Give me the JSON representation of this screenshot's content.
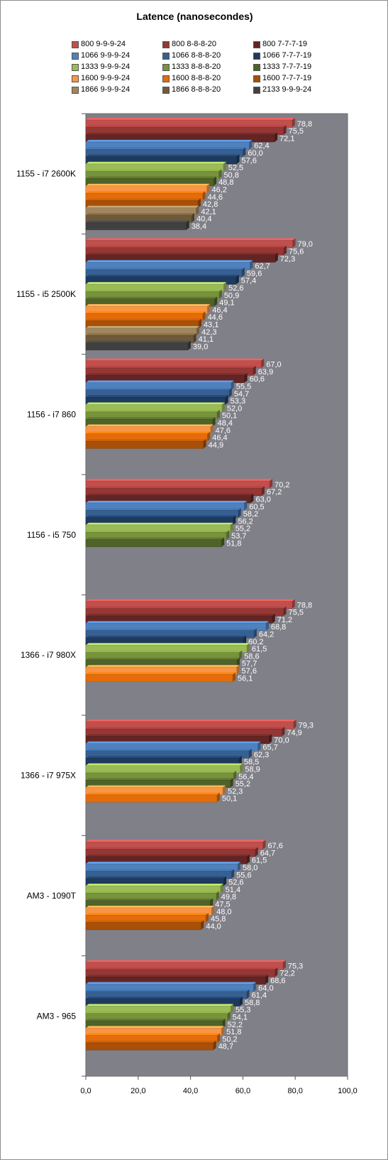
{
  "chart_data": {
    "type": "bar",
    "orientation": "horizontal",
    "title": "Latence (nanosecondes)",
    "xlim": [
      0,
      100
    ],
    "x_ticks": [
      "0,0",
      "20,0",
      "40,0",
      "60,0",
      "80,0",
      "100,0"
    ],
    "grid": false,
    "plot_background": "#808088",
    "legend_position": "top",
    "legend": [
      {
        "name": "800 9-9-9-24",
        "color": "#c0504d"
      },
      {
        "name": "800 8-8-8-20",
        "color": "#953735"
      },
      {
        "name": "800 7-7-7-19",
        "color": "#632523"
      },
      {
        "name": "1066 9-9-9-24",
        "color": "#4f81bd"
      },
      {
        "name": "1066 8-8-8-20",
        "color": "#376092"
      },
      {
        "name": "1066 7-7-7-19",
        "color": "#1f3a5f"
      },
      {
        "name": "1333 9-9-9-24",
        "color": "#9bbb59"
      },
      {
        "name": "1333 8-8-8-20",
        "color": "#77933c"
      },
      {
        "name": "1333 7-7-7-19",
        "color": "#4f6228"
      },
      {
        "name": "1600 9-9-9-24",
        "color": "#f79646"
      },
      {
        "name": "1600 8-8-8-20",
        "color": "#e46c0a"
      },
      {
        "name": "1600 7-7-7-19",
        "color": "#a84f08"
      },
      {
        "name": "1866 9-9-9-24",
        "color": "#a0865e"
      },
      {
        "name": "1866 8-8-8-20",
        "color": "#6e5a3a"
      },
      {
        "name": "2133 9-9-9-24",
        "color": "#404040"
      }
    ],
    "categories": [
      {
        "name": "1155 - i7 2600K",
        "bars": [
          {
            "series": 0,
            "value": 78.8,
            "label": "78,8"
          },
          {
            "series": 1,
            "value": 75.5,
            "label": "75,5"
          },
          {
            "series": 2,
            "value": 72.1,
            "label": "72,1"
          },
          {
            "series": 3,
            "value": 62.4,
            "label": "62,4"
          },
          {
            "series": 4,
            "value": 60.0,
            "label": "60,0"
          },
          {
            "series": 5,
            "value": 57.6,
            "label": "57,6"
          },
          {
            "series": 6,
            "value": 52.5,
            "label": "52,5"
          },
          {
            "series": 7,
            "value": 50.8,
            "label": "50,8"
          },
          {
            "series": 8,
            "value": 48.8,
            "label": "48,8"
          },
          {
            "series": 9,
            "value": 46.2,
            "label": "46,2"
          },
          {
            "series": 10,
            "value": 44.6,
            "label": "44,6"
          },
          {
            "series": 11,
            "value": 42.8,
            "label": "42,8"
          },
          {
            "series": 12,
            "value": 42.1,
            "label": "42,1"
          },
          {
            "series": 13,
            "value": 40.4,
            "label": "40,4"
          },
          {
            "series": 14,
            "value": 38.4,
            "label": "38,4"
          }
        ]
      },
      {
        "name": "1155 - i5 2500K",
        "bars": [
          {
            "series": 0,
            "value": 79.0,
            "label": "79,0"
          },
          {
            "series": 1,
            "value": 75.6,
            "label": "75,6"
          },
          {
            "series": 2,
            "value": 72.3,
            "label": "72,3"
          },
          {
            "series": 3,
            "value": 62.7,
            "label": "62,7"
          },
          {
            "series": 4,
            "value": 59.6,
            "label": "59,6"
          },
          {
            "series": 5,
            "value": 57.4,
            "label": "57,4"
          },
          {
            "series": 6,
            "value": 52.6,
            "label": "52,6"
          },
          {
            "series": 7,
            "value": 50.9,
            "label": "50,9"
          },
          {
            "series": 8,
            "value": 49.1,
            "label": "49,1"
          },
          {
            "series": 9,
            "value": 46.4,
            "label": "46,4"
          },
          {
            "series": 10,
            "value": 44.6,
            "label": "44,6"
          },
          {
            "series": 11,
            "value": 43.1,
            "label": "43,1"
          },
          {
            "series": 12,
            "value": 42.3,
            "label": "42,3"
          },
          {
            "series": 13,
            "value": 41.1,
            "label": "41,1"
          },
          {
            "series": 14,
            "value": 39.0,
            "label": "39,0"
          }
        ]
      },
      {
        "name": "1156 - i7 860",
        "bars": [
          {
            "series": 0,
            "value": 67.0,
            "label": "67,0"
          },
          {
            "series": 1,
            "value": 63.9,
            "label": "63,9"
          },
          {
            "series": 2,
            "value": 60.6,
            "label": "60,6"
          },
          {
            "series": 3,
            "value": 55.5,
            "label": "55,5"
          },
          {
            "series": 4,
            "value": 54.7,
            "label": "54,7"
          },
          {
            "series": 5,
            "value": 53.3,
            "label": "53,3"
          },
          {
            "series": 6,
            "value": 52.0,
            "label": "52,0"
          },
          {
            "series": 7,
            "value": 50.1,
            "label": "50,1"
          },
          {
            "series": 8,
            "value": 48.4,
            "label": "48,4"
          },
          {
            "series": 9,
            "value": 47.6,
            "label": "47,6"
          },
          {
            "series": 10,
            "value": 46.4,
            "label": "46,4"
          },
          {
            "series": 11,
            "value": 44.9,
            "label": "44,9"
          }
        ]
      },
      {
        "name": "1156 - i5 750",
        "bars": [
          {
            "series": 0,
            "value": 70.2,
            "label": "70,2"
          },
          {
            "series": 1,
            "value": 67.2,
            "label": "67,2"
          },
          {
            "series": 2,
            "value": 63.0,
            "label": "63,0"
          },
          {
            "series": 3,
            "value": 60.5,
            "label": "60,5"
          },
          {
            "series": 4,
            "value": 58.2,
            "label": "58,2"
          },
          {
            "series": 5,
            "value": 56.2,
            "label": "56,2"
          },
          {
            "series": 6,
            "value": 55.2,
            "label": "55,2"
          },
          {
            "series": 7,
            "value": 53.7,
            "label": "53,7"
          },
          {
            "series": 8,
            "value": 51.8,
            "label": "51,8"
          }
        ]
      },
      {
        "name": "1366 - i7 980X",
        "bars": [
          {
            "series": 0,
            "value": 78.8,
            "label": "78,8"
          },
          {
            "series": 1,
            "value": 75.5,
            "label": "75,5"
          },
          {
            "series": 2,
            "value": 71.2,
            "label": "71,2"
          },
          {
            "series": 3,
            "value": 68.8,
            "label": "68,8"
          },
          {
            "series": 4,
            "value": 64.2,
            "label": "64,2"
          },
          {
            "series": 5,
            "value": 60.2,
            "label": "60,2"
          },
          {
            "series": 6,
            "value": 61.5,
            "label": "61,5"
          },
          {
            "series": 7,
            "value": 58.6,
            "label": "58,6"
          },
          {
            "series": 8,
            "value": 57.7,
            "label": "57,7"
          },
          {
            "series": 9,
            "value": 57.6,
            "label": "57,6"
          },
          {
            "series": 10,
            "value": 56.1,
            "label": "56,1"
          }
        ]
      },
      {
        "name": "1366 - i7 975X",
        "bars": [
          {
            "series": 0,
            "value": 79.3,
            "label": "79,3"
          },
          {
            "series": 1,
            "value": 74.9,
            "label": "74,9"
          },
          {
            "series": 2,
            "value": 70.0,
            "label": "70,0"
          },
          {
            "series": 3,
            "value": 65.7,
            "label": "65,7"
          },
          {
            "series": 4,
            "value": 62.3,
            "label": "62,3"
          },
          {
            "series": 5,
            "value": 58.5,
            "label": "58,5"
          },
          {
            "series": 6,
            "value": 58.9,
            "label": "58,9"
          },
          {
            "series": 7,
            "value": 56.4,
            "label": "56,4"
          },
          {
            "series": 8,
            "value": 55.2,
            "label": "55,2"
          },
          {
            "series": 9,
            "value": 52.3,
            "label": "52,3"
          },
          {
            "series": 10,
            "value": 50.1,
            "label": "50,1"
          }
        ]
      },
      {
        "name": "AM3 - 1090T",
        "bars": [
          {
            "series": 0,
            "value": 67.6,
            "label": "67,6"
          },
          {
            "series": 1,
            "value": 64.7,
            "label": "64,7"
          },
          {
            "series": 2,
            "value": 61.5,
            "label": "61,5"
          },
          {
            "series": 3,
            "value": 58.0,
            "label": "58,0"
          },
          {
            "series": 4,
            "value": 55.6,
            "label": "55,6"
          },
          {
            "series": 5,
            "value": 52.6,
            "label": "52,6"
          },
          {
            "series": 6,
            "value": 51.4,
            "label": "51,4"
          },
          {
            "series": 7,
            "value": 49.8,
            "label": "49,8"
          },
          {
            "series": 8,
            "value": 47.5,
            "label": "47,5"
          },
          {
            "series": 9,
            "value": 48.0,
            "label": "48,0"
          },
          {
            "series": 10,
            "value": 45.8,
            "label": "45,8"
          },
          {
            "series": 11,
            "value": 44.0,
            "label": "44,0"
          }
        ]
      },
      {
        "name": "AM3 - 965",
        "bars": [
          {
            "series": 0,
            "value": 75.3,
            "label": "75,3"
          },
          {
            "series": 1,
            "value": 72.2,
            "label": "72,2"
          },
          {
            "series": 2,
            "value": 68.6,
            "label": "68,6"
          },
          {
            "series": 3,
            "value": 64.0,
            "label": "64,0"
          },
          {
            "series": 4,
            "value": 61.4,
            "label": "61,4"
          },
          {
            "series": 5,
            "value": 58.8,
            "label": "58,8"
          },
          {
            "series": 6,
            "value": 55.3,
            "label": "55,3"
          },
          {
            "series": 7,
            "value": 54.1,
            "label": "54,1"
          },
          {
            "series": 8,
            "value": 52.2,
            "label": "52,2"
          },
          {
            "series": 9,
            "value": 51.8,
            "label": "51,8"
          },
          {
            "series": 10,
            "value": 50.2,
            "label": "50,2"
          },
          {
            "series": 11,
            "value": 48.7,
            "label": "48,7"
          }
        ]
      }
    ]
  }
}
